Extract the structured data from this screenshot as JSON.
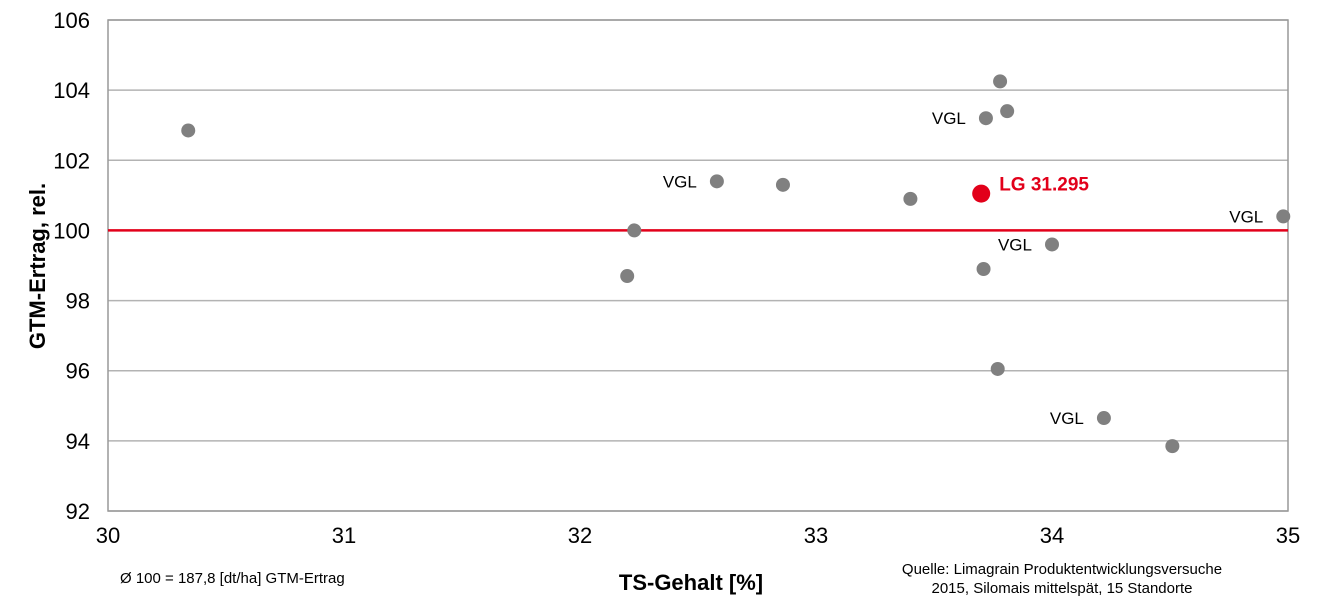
{
  "chart_data": {
    "type": "scatter",
    "title": "",
    "xlabel": "TS-Gehalt [%]",
    "ylabel": "GTM-Ertrag, rel.",
    "xlim": [
      30,
      35
    ],
    "ylim": [
      92,
      106
    ],
    "x_ticks": [
      "30",
      "31",
      "32",
      "33",
      "34",
      "35"
    ],
    "y_ticks": [
      "92",
      "94",
      "96",
      "98",
      "100",
      "102",
      "104",
      "106"
    ],
    "grid": "horizontal",
    "reference_line": {
      "y": 100,
      "color": "#e2001a"
    },
    "points": [
      {
        "x": 30.34,
        "y": 102.85,
        "label": ""
      },
      {
        "x": 32.2,
        "y": 98.7,
        "label": ""
      },
      {
        "x": 32.23,
        "y": 100.0,
        "label": ""
      },
      {
        "x": 32.58,
        "y": 101.4,
        "label": "VGL"
      },
      {
        "x": 32.86,
        "y": 101.3,
        "label": ""
      },
      {
        "x": 33.4,
        "y": 100.9,
        "label": ""
      },
      {
        "x": 33.7,
        "y": 101.05,
        "label": "LG 31.295",
        "highlight": true
      },
      {
        "x": 33.71,
        "y": 98.9,
        "label": ""
      },
      {
        "x": 33.72,
        "y": 103.2,
        "label": "VGL"
      },
      {
        "x": 33.77,
        "y": 96.05,
        "label": ""
      },
      {
        "x": 33.78,
        "y": 104.25,
        "label": ""
      },
      {
        "x": 33.81,
        "y": 103.4,
        "label": ""
      },
      {
        "x": 34.0,
        "y": 99.6,
        "label": "VGL"
      },
      {
        "x": 34.22,
        "y": 94.65,
        "label": "VGL"
      },
      {
        "x": 34.51,
        "y": 93.85,
        "label": ""
      },
      {
        "x": 34.98,
        "y": 100.4,
        "label": "VGL"
      }
    ],
    "colors": {
      "point": "#808080",
      "highlight": "#e2001a",
      "grid": "#b3b3b3"
    }
  },
  "footnote_left": "Ø 100 = 187,8 [dt/ha] GTM-Ertrag",
  "source_line1": "Quelle: Limagrain Produktentwicklungsversuche",
  "source_line2": "2015, Silomais mittelspät, 15 Standorte"
}
